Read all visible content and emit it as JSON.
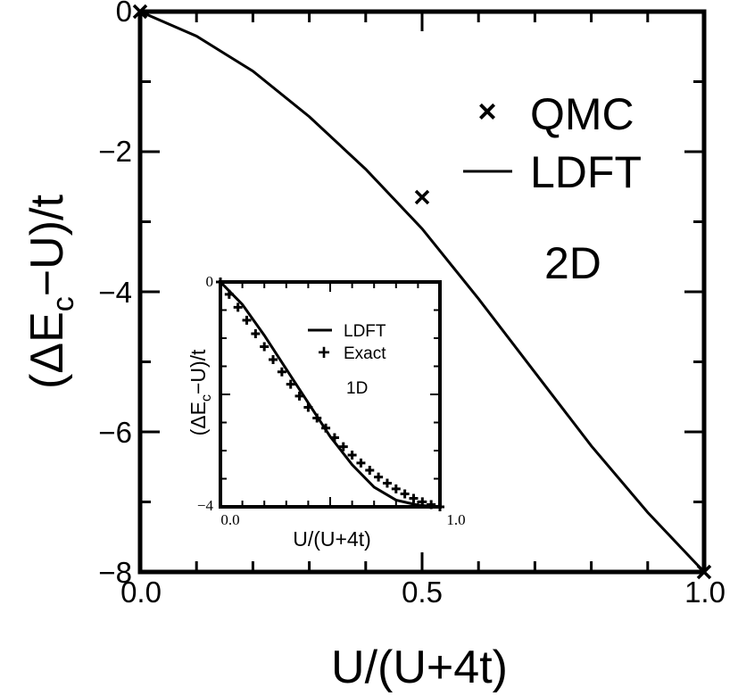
{
  "chart_data": [
    {
      "type": "line",
      "panel": "main",
      "xlabel": "U/(U+4t)",
      "ylabel_parts": [
        "(ΔE",
        "c",
        "−U)/t"
      ],
      "xlim": [
        0,
        1
      ],
      "ylim": [
        -8,
        0
      ],
      "x_tick_labels": [
        "0.0",
        "0.5",
        "1.0"
      ],
      "y_tick_labels": [
        "0",
        "−2",
        "−4",
        "−6",
        "−8"
      ],
      "annotation": "2D",
      "legend_placement": "top-right",
      "series": [
        {
          "name": "QMC",
          "marker": "×",
          "x": [
            0.0,
            0.5,
            1.0
          ],
          "y": [
            0.0,
            -2.65,
            -8.0
          ]
        },
        {
          "name": "LDFT",
          "style": "line",
          "x": [
            0.0,
            0.1,
            0.2,
            0.3,
            0.4,
            0.5,
            0.6,
            0.7,
            0.8,
            0.9,
            1.0
          ],
          "y": [
            0.0,
            -0.35,
            -0.85,
            -1.5,
            -2.25,
            -3.1,
            -4.1,
            -5.15,
            -6.2,
            -7.15,
            -8.0
          ]
        }
      ]
    },
    {
      "type": "line",
      "panel": "inset",
      "xlabel": "U/(U+4t)",
      "ylabel_parts": [
        "(ΔE",
        "c",
        "−U)/t"
      ],
      "xlim": [
        0,
        1
      ],
      "ylim": [
        -4,
        0
      ],
      "x_tick_labels": [
        "0.0",
        "1.0"
      ],
      "y_tick_labels": [
        "0",
        "−4"
      ],
      "annotation": "1D",
      "legend_placement": "top-right",
      "series": [
        {
          "name": "LDFT",
          "style": "line",
          "x": [
            0.0,
            0.1,
            0.2,
            0.3,
            0.4,
            0.5,
            0.6,
            0.7,
            0.8,
            0.9,
            1.0
          ],
          "y": [
            0.0,
            -0.4,
            -0.95,
            -1.55,
            -2.15,
            -2.75,
            -3.25,
            -3.65,
            -3.88,
            -3.97,
            -4.0
          ]
        },
        {
          "name": "Exact",
          "marker": "+",
          "x": [
            0.0,
            0.04,
            0.08,
            0.12,
            0.16,
            0.2,
            0.24,
            0.28,
            0.32,
            0.36,
            0.4,
            0.44,
            0.48,
            0.52,
            0.56,
            0.6,
            0.64,
            0.68,
            0.72,
            0.76,
            0.8,
            0.84,
            0.88,
            0.92,
            0.96,
            1.0
          ],
          "y": [
            0.0,
            -0.22,
            -0.45,
            -0.68,
            -0.92,
            -1.15,
            -1.38,
            -1.6,
            -1.82,
            -2.03,
            -2.23,
            -2.42,
            -2.6,
            -2.77,
            -2.93,
            -3.08,
            -3.22,
            -3.35,
            -3.47,
            -3.58,
            -3.68,
            -3.77,
            -3.85,
            -3.91,
            -3.96,
            -4.0
          ]
        }
      ]
    }
  ]
}
